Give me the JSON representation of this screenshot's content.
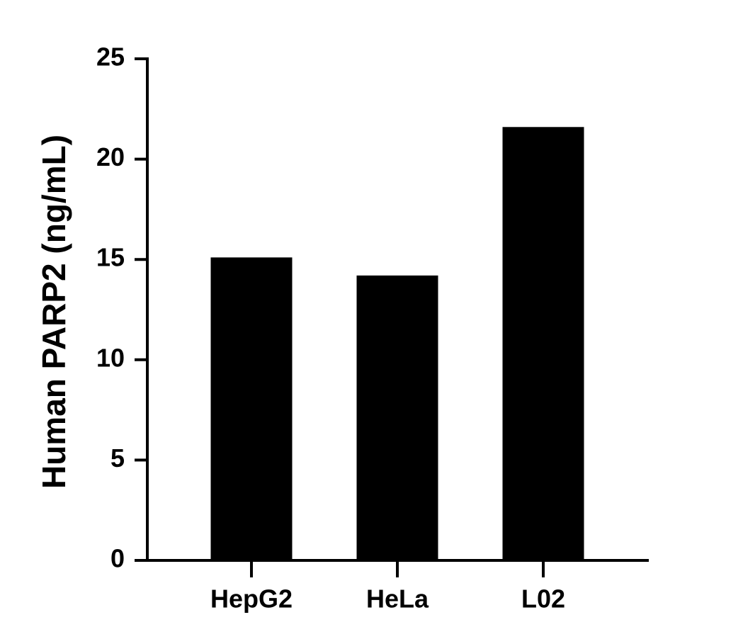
{
  "chart_data": {
    "type": "bar",
    "y_label": "Human PARP2 (ng/mL)",
    "categories": [
      "HepG2",
      "HeLa",
      "L02"
    ],
    "values": [
      15.1,
      14.2,
      21.6
    ],
    "color": "#000000",
    "ylim": [
      0,
      25
    ],
    "yticks": [
      0,
      5,
      10,
      15,
      20,
      25
    ]
  }
}
